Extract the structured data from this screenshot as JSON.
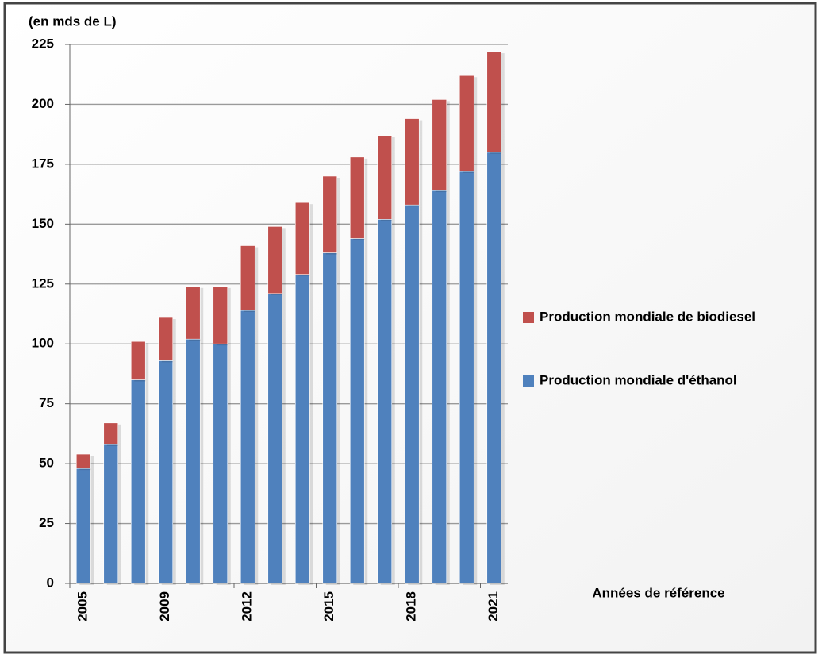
{
  "chart_data": {
    "type": "bar",
    "stacked": true,
    "y_label": "(en mds de L)",
    "x_label": "Années de référence",
    "categories": [
      "2005",
      null,
      null,
      "2009",
      null,
      null,
      "2012",
      null,
      null,
      "2015",
      null,
      null,
      "2018",
      null,
      null,
      "2021"
    ],
    "series": [
      {
        "name": "Production mondiale d'éthanol",
        "color": "#4f81bd",
        "values": [
          48,
          58,
          85,
          93,
          102,
          100,
          114,
          121,
          129,
          138,
          144,
          152,
          158,
          164,
          172,
          180
        ]
      },
      {
        "name": "Production mondiale de biodiesel",
        "color": "#c0504d",
        "values": [
          6,
          9,
          16,
          18,
          22,
          24,
          27,
          28,
          30,
          32,
          34,
          35,
          36,
          38,
          40,
          42
        ]
      }
    ],
    "ylim": [
      0,
      225
    ],
    "yticks": [
      0,
      25,
      50,
      75,
      100,
      125,
      150,
      175,
      200,
      225
    ],
    "grid": true
  }
}
